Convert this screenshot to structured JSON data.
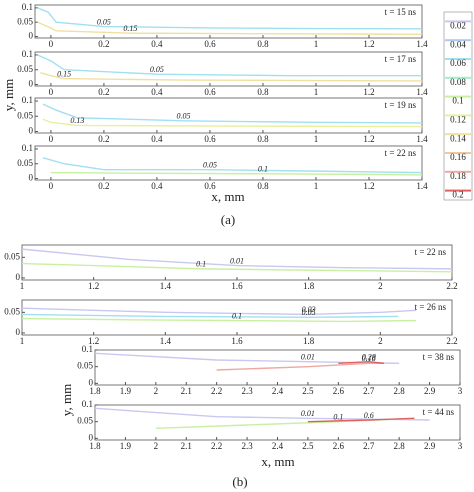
{
  "chart_data": [
    {
      "type": "contour",
      "annotation": "t = 15 ns",
      "xlim": [
        -0.06,
        1.4
      ],
      "xticks": [
        0,
        0.2,
        0.4,
        0.6,
        0.8,
        1,
        1.2,
        1.4
      ],
      "ylim": [
        -0.005,
        0.11
      ],
      "yticks": [
        0,
        0.05,
        0.1
      ],
      "colorbar": {
        "levels": [
          0.02,
          0.04,
          0.06,
          0.08,
          0.1,
          0.12,
          0.14,
          0.16,
          0.18,
          0.2
        ],
        "colors": [
          "#c8c8f0",
          "#b0c8f0",
          "#a0e0f0",
          "#a0f0c8",
          "#c8f0a0",
          "#e8f0a0",
          "#f0e0a0",
          "#f0c8a0",
          "#f0a8a0",
          "#e06060"
        ]
      },
      "contours": [
        {
          "level": 0.05,
          "x": [
            -0.05,
            -0.01,
            0.02,
            0.2,
            0.6,
            1.0,
            1.4
          ],
          "y": [
            0.1,
            0.085,
            0.05,
            0.035,
            0.03,
            0.028,
            0.027
          ]
        },
        {
          "level": 0.15,
          "x": [
            -0.05,
            0,
            0.02,
            0.3,
            0.8,
            1.4
          ],
          "y": [
            0.05,
            0.03,
            0.02,
            0.012,
            0.01,
            0.008
          ]
        }
      ]
    },
    {
      "type": "contour",
      "annotation": "t = 17 ns",
      "xlim": [
        -0.06,
        1.4
      ],
      "xticks": [
        0,
        0.2,
        0.4,
        0.6,
        0.8,
        1,
        1.2,
        1.4
      ],
      "ylim": [
        -0.005,
        0.11
      ],
      "yticks": [
        0,
        0.05,
        0.1
      ],
      "ylabel": "y, mm",
      "contours": [
        {
          "level": 0.05,
          "x": [
            -0.05,
            0,
            0.05,
            0.4,
            0.9,
            1.4
          ],
          "y": [
            0.1,
            0.08,
            0.05,
            0.035,
            0.03,
            0.03
          ]
        },
        {
          "level": 0.15,
          "x": [
            -0.04,
            0,
            0.05,
            0.5,
            1.4
          ],
          "y": [
            0.04,
            0.03,
            0.02,
            0.015,
            0.012
          ]
        }
      ]
    },
    {
      "type": "contour",
      "annotation": "t = 19 ns",
      "xlim": [
        -0.06,
        1.4
      ],
      "xticks": [
        0,
        0.2,
        0.4,
        0.6,
        0.8,
        1,
        1.2,
        1.4
      ],
      "ylim": [
        -0.005,
        0.11
      ],
      "yticks": [
        0,
        0.05,
        0.1
      ],
      "contours": [
        {
          "level": 0.05,
          "x": [
            -0.03,
            0.02,
            0.1,
            0.5,
            1.0,
            1.4
          ],
          "y": [
            0.09,
            0.07,
            0.045,
            0.035,
            0.03,
            0.028
          ]
        },
        {
          "level": 0.13,
          "x": [
            -0.03,
            0,
            0.1,
            0.6,
            1.4
          ],
          "y": [
            0.04,
            0.03,
            0.02,
            0.018,
            0.016
          ]
        }
      ]
    },
    {
      "type": "contour",
      "annotation": "t = 22 ns",
      "xlim": [
        -0.06,
        1.4
      ],
      "xticks": [
        0,
        0.2,
        0.4,
        0.6,
        0.8,
        1,
        1.2,
        1.4
      ],
      "ylim": [
        -0.005,
        0.11
      ],
      "yticks": [
        0,
        0.05,
        0.1
      ],
      "xlabel": "x, mm",
      "caption": "(a)",
      "contours": [
        {
          "level": 0.05,
          "x": [
            -0.03,
            0.05,
            0.2,
            0.6,
            1.0,
            1.4
          ],
          "y": [
            0.07,
            0.05,
            0.03,
            0.03,
            0.025,
            0.02
          ]
        },
        {
          "level": 0.1,
          "x": [
            0,
            0.3,
            0.8,
            1.2,
            1.4
          ],
          "y": [
            0.02,
            0.018,
            0.016,
            0.014,
            0.012
          ]
        }
      ]
    },
    {
      "type": "contour",
      "annotation": "t = 22 ns",
      "xlim": [
        1,
        2.2
      ],
      "xticks": [
        1,
        1.2,
        1.4,
        1.6,
        1.8,
        2,
        2.2
      ],
      "ylim": [
        -0.005,
        0.08
      ],
      "yticks": [
        0,
        0.05
      ],
      "contours": [
        {
          "level": 0.01,
          "x": [
            1,
            1.3,
            1.6,
            1.9,
            2.2
          ],
          "y": [
            0.07,
            0.045,
            0.03,
            0.025,
            0.022
          ]
        },
        {
          "level": 0.1,
          "x": [
            1,
            1.2,
            1.5,
            1.9,
            2.2
          ],
          "y": [
            0.035,
            0.03,
            0.022,
            0.018,
            0.015
          ]
        }
      ]
    },
    {
      "type": "contour",
      "annotation": "t = 26 ns",
      "xlim": [
        1,
        2.2
      ],
      "xticks": [
        1,
        1.2,
        1.4,
        1.6,
        1.8,
        2,
        2.2
      ],
      "ylim": [
        -0.005,
        0.08
      ],
      "yticks": [
        0,
        0.05
      ],
      "contours": [
        {
          "level": 0.03,
          "x": [
            1,
            1.4,
            1.8,
            2.0,
            2.1
          ],
          "y": [
            0.06,
            0.05,
            0.045,
            0.05,
            0.055
          ]
        },
        {
          "level": 0.05,
          "x": [
            1,
            1.4,
            1.8,
            2.05
          ],
          "y": [
            0.045,
            0.04,
            0.038,
            0.04
          ]
        },
        {
          "level": 0.1,
          "x": [
            1,
            1.3,
            1.6,
            1.9,
            2.1
          ],
          "y": [
            0.035,
            0.032,
            0.03,
            0.028,
            0.03
          ]
        }
      ]
    },
    {
      "type": "contour",
      "annotation": "t = 38 ns",
      "xlim": [
        1.8,
        3
      ],
      "xticks": [
        1.8,
        1.9,
        2,
        2.1,
        2.2,
        2.3,
        2.4,
        2.5,
        2.6,
        2.7,
        2.8,
        2.9,
        3
      ],
      "ylim": [
        -0.005,
        0.1
      ],
      "yticks": [
        0,
        0.05,
        0.1
      ],
      "ylabel": "y, mm",
      "contours": [
        {
          "level": 0.01,
          "x": [
            1.8,
            2.2,
            2.5,
            2.8
          ],
          "y": [
            0.09,
            0.07,
            0.065,
            0.06
          ]
        },
        {
          "level": 0.18,
          "x": [
            2.2,
            2.5,
            2.7,
            2.75
          ],
          "y": [
            0.04,
            0.05,
            0.06,
            0.06
          ]
        },
        {
          "level": 0.28,
          "x": [
            2.6,
            2.7,
            2.75
          ],
          "y": [
            0.06,
            0.065,
            0.06
          ]
        }
      ]
    },
    {
      "type": "contour",
      "annotation": "t = 44 ns",
      "xlim": [
        1.8,
        3
      ],
      "xticks": [
        1.8,
        1.9,
        2,
        2.1,
        2.2,
        2.3,
        2.4,
        2.5,
        2.6,
        2.7,
        2.8,
        2.9,
        3
      ],
      "ylim": [
        -0.005,
        0.1
      ],
      "yticks": [
        0,
        0.05,
        0.1
      ],
      "xlabel": "x, mm",
      "caption": "(b)",
      "contours": [
        {
          "level": 0.01,
          "x": [
            1.8,
            2.2,
            2.5,
            2.9
          ],
          "y": [
            0.09,
            0.065,
            0.06,
            0.055
          ]
        },
        {
          "level": 0.1,
          "x": [
            2.0,
            2.3,
            2.6,
            2.85
          ],
          "y": [
            0.03,
            0.04,
            0.05,
            0.06
          ]
        },
        {
          "level": 0.6,
          "x": [
            2.5,
            2.7,
            2.85
          ],
          "y": [
            0.05,
            0.055,
            0.06
          ]
        }
      ]
    }
  ]
}
